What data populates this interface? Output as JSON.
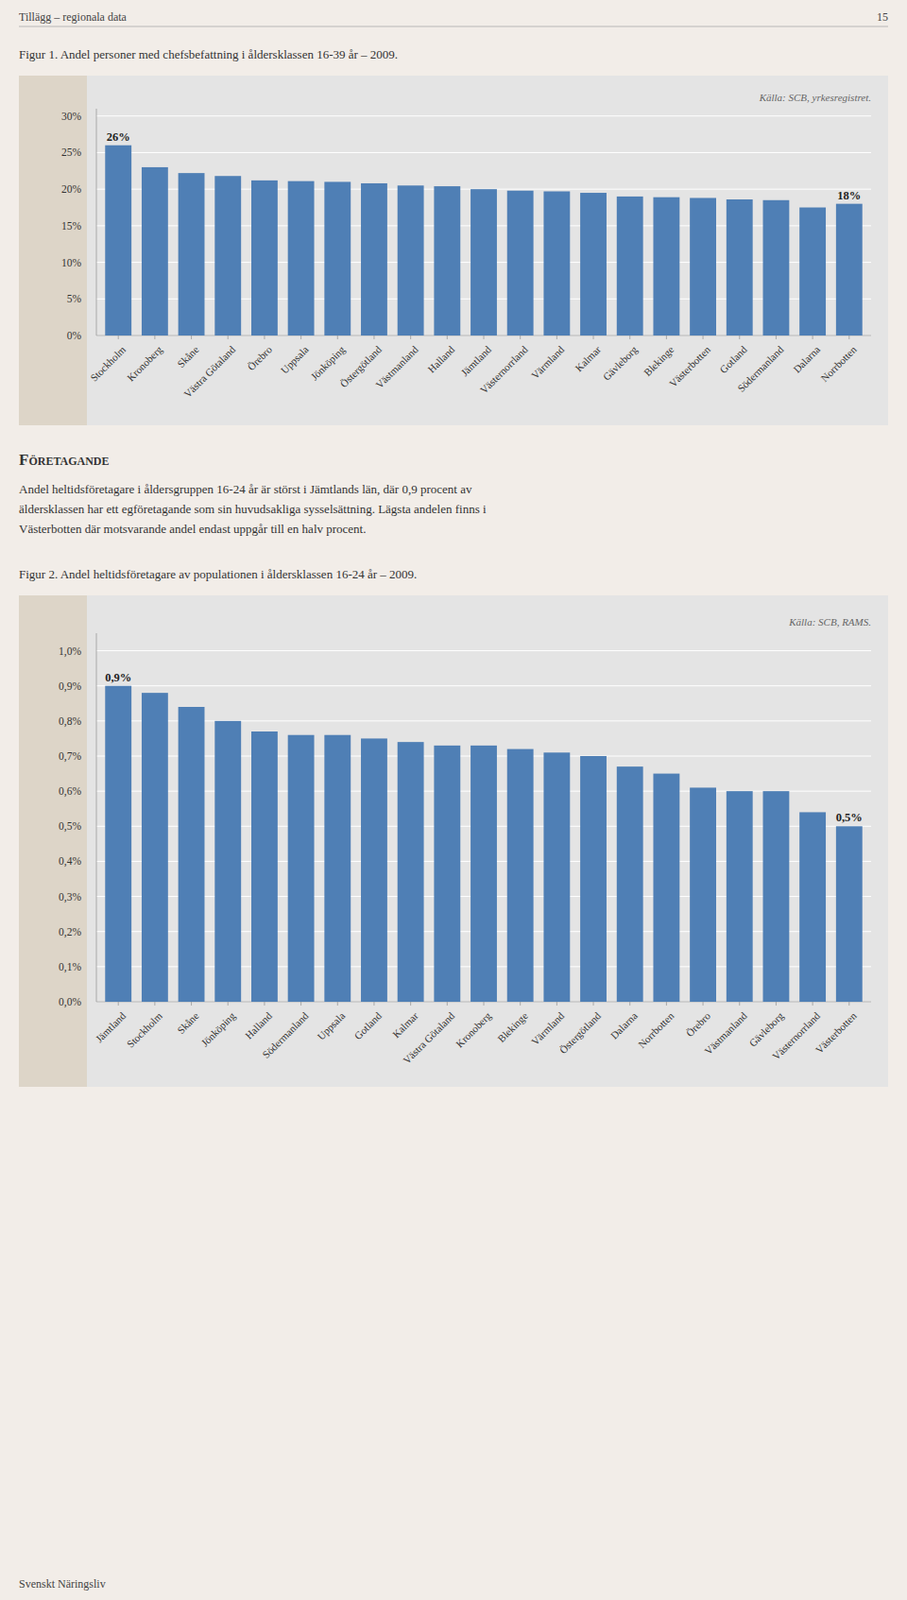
{
  "page_header": "Tillägg – regionala data",
  "page_number": "15",
  "section_title": "Företagande",
  "section_text": [
    "Andel heltidsföretagare i åldersgruppen 16-24 år är störst i Jämtlands län, där 0,9 procent av",
    "äldersklassen har ett egföretagande som sin huvudsakliga sysselsättning. Lägsta andelen finns i",
    "Västerbotten där motsvarande andel endast uppgår till en halv procent."
  ],
  "footer": "Svenskt Näringsliv",
  "chart_data": [
    {
      "type": "bar",
      "title": "Figur 1. Andel personer med chefsbefattning i åldersklassen 16-39 år – 2009.",
      "annotations": [
        "Källa: SCB, yrkesregistret."
      ],
      "categories": [
        "Stockholm",
        "Kronoberg",
        "Skåne",
        "Västra Götaland",
        "Örebro",
        "Uppsala",
        "Jönköping",
        "Östergötland",
        "Västmanland",
        "Halland",
        "Jämtland",
        "Västernorrland",
        "Värmland",
        "Kalmar",
        "Gävleborg",
        "Blekinge",
        "Västerbotten",
        "Gotland",
        "Södermanland",
        "Dalarna",
        "Norrbotten"
      ],
      "values": [
        26,
        23,
        22.2,
        21.8,
        21.2,
        21.1,
        21.0,
        20.8,
        20.5,
        20.4,
        20.0,
        19.8,
        19.7,
        19.5,
        19.0,
        18.9,
        18.8,
        18.6,
        18.5,
        17.5,
        18.0
      ],
      "value_labels": [
        "26%",
        null,
        null,
        null,
        null,
        null,
        null,
        null,
        null,
        null,
        null,
        null,
        null,
        null,
        null,
        null,
        null,
        null,
        null,
        null,
        "18%"
      ],
      "color": "#4f7fb5",
      "ylim": [
        0,
        31
      ],
      "yticks": [
        {
          "value": 0,
          "label": "0%"
        },
        {
          "value": 5,
          "label": "5%"
        },
        {
          "value": 10,
          "label": "10%"
        },
        {
          "value": 15,
          "label": "15%"
        },
        {
          "value": 20,
          "label": "20%"
        },
        {
          "value": 25,
          "label": "25%"
        },
        {
          "value": 30,
          "label": "30%"
        }
      ],
      "grid": true
    },
    {
      "type": "bar",
      "title": "Figur 2. Andel heltidsföretagare av populationen i åldersklassen 16-24 år – 2009.",
      "annotations": [
        "Källa: SCB, RAMS."
      ],
      "categories": [
        "Jämtland",
        "Stockholm",
        "Skåne",
        "Jönköping",
        "Halland",
        "Södermanland",
        "Uppsala",
        "Gotland",
        "Kalmar",
        "Västra Götaland",
        "Kronoberg",
        "Blekinge",
        "Värmland",
        "Östergötland",
        "Dalarna",
        "Norrbotten",
        "Örebro",
        "Västmanland",
        "Gävleborg",
        "Västernorrland",
        "Västerbotten"
      ],
      "values": [
        0.9,
        0.88,
        0.84,
        0.8,
        0.77,
        0.76,
        0.76,
        0.75,
        0.74,
        0.73,
        0.73,
        0.72,
        0.71,
        0.7,
        0.67,
        0.65,
        0.61,
        0.6,
        0.6,
        0.54,
        0.5
      ],
      "value_labels": [
        "0,9%",
        null,
        null,
        null,
        null,
        null,
        null,
        null,
        null,
        null,
        null,
        null,
        null,
        null,
        null,
        null,
        null,
        null,
        null,
        null,
        "0,5%"
      ],
      "color": "#4f7fb5",
      "ylim": [
        0,
        1.05
      ],
      "yticks": [
        {
          "value": 0.0,
          "label": "0,0%"
        },
        {
          "value": 0.1,
          "label": "0,1%"
        },
        {
          "value": 0.2,
          "label": "0,2%"
        },
        {
          "value": 0.3,
          "label": "0,3%"
        },
        {
          "value": 0.4,
          "label": "0,4%"
        },
        {
          "value": 0.5,
          "label": "0,5%"
        },
        {
          "value": 0.6,
          "label": "0,6%"
        },
        {
          "value": 0.7,
          "label": "0,7%"
        },
        {
          "value": 0.8,
          "label": "0,8%"
        },
        {
          "value": 0.9,
          "label": "0,9%"
        },
        {
          "value": 1.0,
          "label": "1,0%"
        }
      ],
      "grid": true
    }
  ]
}
